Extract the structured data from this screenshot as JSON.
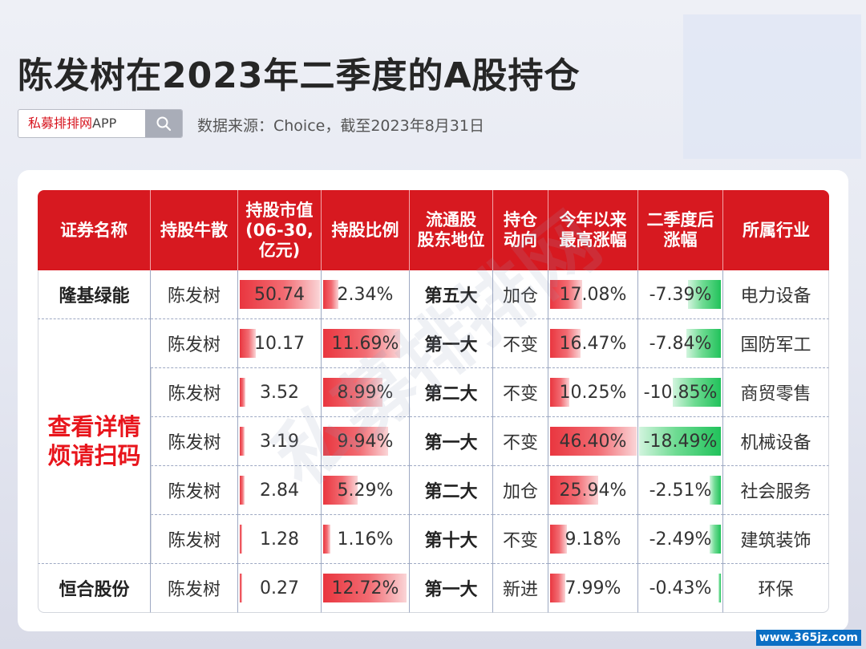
{
  "title": "陈发树在2023年二季度的A股持仓",
  "search": {
    "brand": "私募排排网",
    "suffix": "APP"
  },
  "source": "数据来源：Choice，截至2023年8月31日",
  "headers": {
    "name": "证券名称",
    "holder": "持股牛散",
    "value_l1": "持股市值",
    "value_l2": "(06-30,",
    "value_l3": "亿元)",
    "ratio": "持股比例",
    "rank_l1": "流通股",
    "rank_l2": "股东地位",
    "trend_l1": "持仓",
    "trend_l2": "动向",
    "ytd_l1": "今年以来",
    "ytd_l2": "最高涨幅",
    "after_l1": "二季度后",
    "after_l2": "涨幅",
    "industry": "所属行业"
  },
  "scan_notice": {
    "line1": "查看详情",
    "line2": "烦请扫码"
  },
  "rows": [
    {
      "name": "隆基绿能",
      "holder": "陈发树",
      "value": "50.74",
      "ratio": "2.34%",
      "rank": "第五大",
      "trend": "加仓",
      "ytd": "17.08%",
      "after": "-7.39%",
      "industry": "电力设备"
    },
    {
      "name": "",
      "holder": "陈发树",
      "value": "10.17",
      "ratio": "11.69%",
      "rank": "第一大",
      "trend": "不变",
      "ytd": "16.47%",
      "after": "-7.84%",
      "industry": "国防军工"
    },
    {
      "name": "",
      "holder": "陈发树",
      "value": "3.52",
      "ratio": "8.99%",
      "rank": "第二大",
      "trend": "不变",
      "ytd": "10.25%",
      "after": "-10.85%",
      "industry": "商贸零售"
    },
    {
      "name": "",
      "holder": "陈发树",
      "value": "3.19",
      "ratio": "9.94%",
      "rank": "第一大",
      "trend": "不变",
      "ytd": "46.40%",
      "after": "-18.49%",
      "industry": "机械设备"
    },
    {
      "name": "",
      "holder": "陈发树",
      "value": "2.84",
      "ratio": "5.29%",
      "rank": "第二大",
      "trend": "加仓",
      "ytd": "25.94%",
      "after": "-2.51%",
      "industry": "社会服务"
    },
    {
      "name": "",
      "holder": "陈发树",
      "value": "1.28",
      "ratio": "1.16%",
      "rank": "第十大",
      "trend": "不变",
      "ytd": "9.18%",
      "after": "-2.49%",
      "industry": "建筑装饰"
    },
    {
      "name": "恒合股份",
      "holder": "陈发树",
      "value": "0.27",
      "ratio": "12.72%",
      "rank": "第一大",
      "trend": "新进",
      "ytd": "7.99%",
      "after": "-0.43%",
      "industry": "环保"
    }
  ],
  "site": "www.365jz.com",
  "colors": {
    "header": "#d71920",
    "positive_bar": "#e9363f",
    "negative_bar": "#21c25b",
    "scan_text": "#e8151c"
  }
}
